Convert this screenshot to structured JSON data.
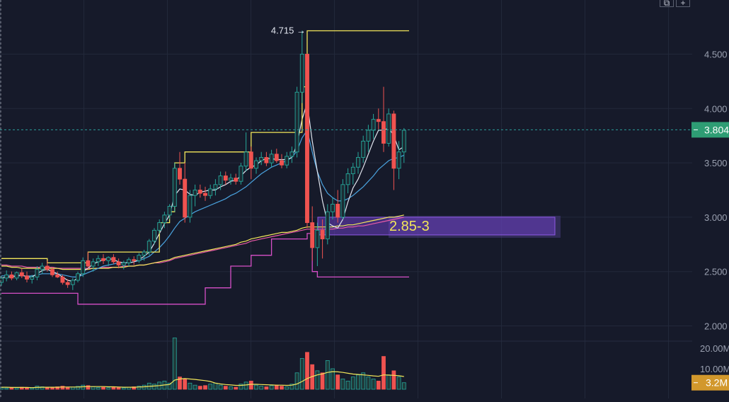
{
  "chart_data": {
    "type": "candlestick",
    "price_axis": {
      "ticks": [
        "4.500",
        "4.000",
        "3.500",
        "3.000",
        "2.500",
        "2.000"
      ],
      "tick_values": [
        4.5,
        4.0,
        3.5,
        3.0,
        2.5,
        2.0
      ],
      "range": [
        1.7,
        4.95
      ]
    },
    "volume_axis": {
      "ticks": [
        "20.00M",
        "10.00M"
      ],
      "tick_values": [
        20,
        10
      ],
      "unit": "M"
    },
    "current_price": {
      "value": 3.804,
      "label": "3.804",
      "color": "#2e9d74"
    },
    "current_volume": {
      "value": 3.2,
      "label": "3.2M",
      "color": "#d2982c"
    },
    "annotations": {
      "high_marker": {
        "label": "4.715 →",
        "value": 4.715
      },
      "zone": {
        "label": "2.85-3",
        "low": 2.85,
        "high": 3.0,
        "color": "#7a45c8"
      }
    },
    "colors": {
      "up": "#26a69a",
      "down": "#ef5350",
      "donchian_upper": "#f2e65a",
      "donchian_lower": "#d64fc7",
      "ma_fast": "#e0e4ee",
      "ma_mid": "#4aa3df",
      "ma_long": "#f2e65a",
      "ma_long2": "#e85aa8",
      "volume_ma": "#f2e65a"
    },
    "candles": [
      [
        2.4,
        2.46,
        2.37,
        2.44
      ],
      [
        2.44,
        2.51,
        2.41,
        2.47
      ],
      [
        2.47,
        2.5,
        2.42,
        2.44
      ],
      [
        2.44,
        2.5,
        2.42,
        2.49
      ],
      [
        2.49,
        2.53,
        2.44,
        2.46
      ],
      [
        2.46,
        2.5,
        2.4,
        2.43
      ],
      [
        2.43,
        2.47,
        2.39,
        2.45
      ],
      [
        2.45,
        2.55,
        2.42,
        2.52
      ],
      [
        2.52,
        2.58,
        2.48,
        2.55
      ],
      [
        2.55,
        2.6,
        2.5,
        2.52
      ],
      [
        2.52,
        2.54,
        2.45,
        2.47
      ],
      [
        2.47,
        2.5,
        2.44,
        2.45
      ],
      [
        2.45,
        2.47,
        2.38,
        2.4
      ],
      [
        2.4,
        2.43,
        2.35,
        2.38
      ],
      [
        2.38,
        2.44,
        2.33,
        2.42
      ],
      [
        2.42,
        2.5,
        2.4,
        2.48
      ],
      [
        2.48,
        2.63,
        2.45,
        2.6
      ],
      [
        2.6,
        2.68,
        2.52,
        2.55
      ],
      [
        2.55,
        2.62,
        2.5,
        2.59
      ],
      [
        2.59,
        2.65,
        2.55,
        2.62
      ],
      [
        2.62,
        2.66,
        2.57,
        2.6
      ],
      [
        2.6,
        2.64,
        2.55,
        2.63
      ],
      [
        2.63,
        2.66,
        2.57,
        2.59
      ],
      [
        2.59,
        2.62,
        2.53,
        2.56
      ],
      [
        2.56,
        2.6,
        2.52,
        2.58
      ],
      [
        2.58,
        2.63,
        2.55,
        2.61
      ],
      [
        2.61,
        2.64,
        2.56,
        2.6
      ],
      [
        2.6,
        2.67,
        2.58,
        2.65
      ],
      [
        2.65,
        2.7,
        2.6,
        2.68
      ],
      [
        2.68,
        2.8,
        2.65,
        2.78
      ],
      [
        2.78,
        2.9,
        2.75,
        2.88
      ],
      [
        2.88,
        2.98,
        2.85,
        2.95
      ],
      [
        2.95,
        3.05,
        2.9,
        3.02
      ],
      [
        3.02,
        3.12,
        2.98,
        3.1
      ],
      [
        3.1,
        3.5,
        3.05,
        3.45
      ],
      [
        3.45,
        3.6,
        3.3,
        3.35
      ],
      [
        3.35,
        3.5,
        2.95,
        3.0
      ],
      [
        3.0,
        3.25,
        2.95,
        3.2
      ],
      [
        3.2,
        3.3,
        3.1,
        3.25
      ],
      [
        3.25,
        3.3,
        3.18,
        3.22
      ],
      [
        3.22,
        3.28,
        3.15,
        3.2
      ],
      [
        3.2,
        3.3,
        3.17,
        3.26
      ],
      [
        3.26,
        3.35,
        3.2,
        3.3
      ],
      [
        3.3,
        3.42,
        3.25,
        3.38
      ],
      [
        3.38,
        3.42,
        3.3,
        3.34
      ],
      [
        3.34,
        3.4,
        3.3,
        3.36
      ],
      [
        3.36,
        3.4,
        3.3,
        3.33
      ],
      [
        3.33,
        3.5,
        3.3,
        3.47
      ],
      [
        3.47,
        3.78,
        3.42,
        3.6
      ],
      [
        3.6,
        3.65,
        3.35,
        3.45
      ],
      [
        3.45,
        3.55,
        3.4,
        3.52
      ],
      [
        3.52,
        3.6,
        3.48,
        3.55
      ],
      [
        3.55,
        3.6,
        3.47,
        3.5
      ],
      [
        3.5,
        3.62,
        3.46,
        3.58
      ],
      [
        3.58,
        3.63,
        3.5,
        3.52
      ],
      [
        3.52,
        3.58,
        3.45,
        3.48
      ],
      [
        3.48,
        3.6,
        3.45,
        3.56
      ],
      [
        3.56,
        3.65,
        3.5,
        3.6
      ],
      [
        3.6,
        4.2,
        3.55,
        4.15
      ],
      [
        4.15,
        4.715,
        4.05,
        4.5
      ],
      [
        4.5,
        4.5,
        2.9,
        2.95
      ],
      [
        2.95,
        3.1,
        2.6,
        2.72
      ],
      [
        2.72,
        2.95,
        2.55,
        2.88
      ],
      [
        2.88,
        2.98,
        2.62,
        2.8
      ],
      [
        2.8,
        3.12,
        2.75,
        3.05
      ],
      [
        3.05,
        3.18,
        2.98,
        3.12
      ],
      [
        3.12,
        3.25,
        2.95,
        3.0
      ],
      [
        3.0,
        3.35,
        2.98,
        3.3
      ],
      [
        3.3,
        3.45,
        3.22,
        3.4
      ],
      [
        3.4,
        3.5,
        3.3,
        3.46
      ],
      [
        3.46,
        3.6,
        3.4,
        3.55
      ],
      [
        3.55,
        3.75,
        3.5,
        3.7
      ],
      [
        3.7,
        3.85,
        3.6,
        3.8
      ],
      [
        3.8,
        3.95,
        3.72,
        3.9
      ],
      [
        3.9,
        4.0,
        3.8,
        3.88
      ],
      [
        3.88,
        4.2,
        3.6,
        3.68
      ],
      [
        3.68,
        4.0,
        3.65,
        3.95
      ],
      [
        3.95,
        3.98,
        3.25,
        3.45
      ],
      [
        3.45,
        3.7,
        3.35,
        3.6
      ],
      [
        3.6,
        3.82,
        3.5,
        3.8
      ]
    ],
    "volume": [
      0.8,
      0.6,
      0.9,
      0.7,
      1.0,
      0.8,
      0.6,
      1.5,
      1.2,
      1.0,
      0.8,
      1.2,
      1.5,
      0.9,
      1.0,
      1.4,
      2.0,
      1.8,
      1.2,
      0.9,
      1.0,
      0.8,
      1.1,
      0.9,
      0.7,
      1.0,
      1.2,
      1.5,
      2.0,
      3.0,
      2.5,
      3.5,
      4.0,
      3.0,
      25.0,
      6.0,
      5.0,
      3.0,
      2.0,
      1.5,
      1.8,
      2.5,
      3.0,
      2.0,
      1.5,
      1.2,
      1.0,
      2.5,
      3.5,
      4.0,
      2.0,
      1.5,
      1.2,
      1.8,
      2.0,
      1.5,
      1.2,
      2.5,
      8.0,
      15.0,
      18.0,
      12.0,
      9.0,
      8.0,
      14.0,
      10.0,
      7.0,
      5.0,
      4.0,
      6.0,
      7.0,
      8.0,
      6.0,
      5.0,
      4.0,
      16.0,
      7.0,
      9.0,
      6.0,
      3.2
    ],
    "donchian_upper": [
      [
        0,
        2.62
      ],
      [
        8,
        2.62
      ],
      [
        9,
        2.58
      ],
      [
        16,
        2.58
      ],
      [
        17,
        2.68
      ],
      [
        30,
        2.68
      ],
      [
        31,
        2.95
      ],
      [
        33,
        3.05
      ],
      [
        34,
        3.5
      ],
      [
        36,
        3.6
      ],
      [
        48,
        3.6
      ],
      [
        49,
        3.78
      ],
      [
        58,
        3.78
      ],
      [
        59,
        4.2
      ],
      [
        60,
        4.715
      ],
      [
        80,
        4.715
      ]
    ],
    "donchian_lower": [
      [
        0,
        2.3
      ],
      [
        14,
        2.3
      ],
      [
        15,
        2.2
      ],
      [
        39,
        2.2
      ],
      [
        40,
        2.35
      ],
      [
        45,
        2.55
      ],
      [
        49,
        2.65
      ],
      [
        53,
        2.8
      ],
      [
        60,
        2.85
      ],
      [
        61,
        2.5
      ],
      [
        62,
        2.45
      ],
      [
        80,
        2.45
      ]
    ],
    "ma_fast": [
      2.44,
      2.45,
      2.45,
      2.46,
      2.47,
      2.45,
      2.45,
      2.48,
      2.51,
      2.52,
      2.5,
      2.48,
      2.45,
      2.42,
      2.41,
      2.44,
      2.5,
      2.53,
      2.57,
      2.59,
      2.61,
      2.62,
      2.61,
      2.59,
      2.58,
      2.58,
      2.59,
      2.61,
      2.64,
      2.68,
      2.76,
      2.85,
      2.94,
      3.02,
      3.2,
      3.26,
      3.25,
      3.21,
      3.2,
      3.23,
      3.24,
      3.25,
      3.25,
      3.28,
      3.3,
      3.33,
      3.34,
      3.38,
      3.43,
      3.46,
      3.48,
      3.52,
      3.54,
      3.54,
      3.53,
      3.53,
      3.53,
      3.55,
      3.67,
      3.9,
      4.05,
      3.7,
      3.42,
      3.15,
      2.95,
      2.92,
      2.9,
      2.98,
      3.14,
      3.27,
      3.35,
      3.46,
      3.58,
      3.7,
      3.8,
      3.8,
      3.82,
      3.75,
      3.62,
      3.65
    ],
    "ma_mid": [
      2.46,
      2.46,
      2.46,
      2.46,
      2.46,
      2.46,
      2.46,
      2.47,
      2.48,
      2.48,
      2.48,
      2.48,
      2.47,
      2.46,
      2.45,
      2.45,
      2.47,
      2.49,
      2.51,
      2.53,
      2.55,
      2.56,
      2.57,
      2.58,
      2.58,
      2.58,
      2.59,
      2.6,
      2.62,
      2.64,
      2.68,
      2.72,
      2.77,
      2.83,
      2.9,
      2.96,
      2.99,
      3.02,
      3.05,
      3.07,
      3.09,
      3.11,
      3.13,
      3.15,
      3.17,
      3.2,
      3.22,
      3.25,
      3.28,
      3.32,
      3.36,
      3.4,
      3.43,
      3.46,
      3.48,
      3.5,
      3.52,
      3.55,
      3.61,
      3.73,
      3.8,
      3.6,
      3.42,
      3.3,
      3.22,
      3.18,
      3.15,
      3.15,
      3.17,
      3.2,
      3.24,
      3.28,
      3.33,
      3.38,
      3.44,
      3.48,
      3.52,
      3.54,
      3.55,
      3.57
    ],
    "ma_long": [
      2.55,
      2.55,
      2.54,
      2.54,
      2.53,
      2.53,
      2.53,
      2.53,
      2.53,
      2.53,
      2.53,
      2.53,
      2.52,
      2.52,
      2.52,
      2.52,
      2.52,
      2.52,
      2.53,
      2.53,
      2.53,
      2.53,
      2.54,
      2.54,
      2.54,
      2.55,
      2.55,
      2.56,
      2.56,
      2.57,
      2.58,
      2.59,
      2.6,
      2.61,
      2.63,
      2.64,
      2.65,
      2.66,
      2.67,
      2.68,
      2.69,
      2.7,
      2.71,
      2.72,
      2.73,
      2.74,
      2.75,
      2.77,
      2.78,
      2.8,
      2.81,
      2.82,
      2.83,
      2.84,
      2.85,
      2.86,
      2.86,
      2.87,
      2.88,
      2.9,
      2.91,
      2.91,
      2.91,
      2.91,
      2.91,
      2.91,
      2.92,
      2.92,
      2.93,
      2.93,
      2.94,
      2.95,
      2.96,
      2.97,
      2.98,
      2.99,
      3.0,
      3.0,
      3.01,
      3.02
    ],
    "ma_long2": [
      2.56,
      2.56,
      2.55,
      2.55,
      2.55,
      2.54,
      2.54,
      2.54,
      2.54,
      2.54,
      2.54,
      2.53,
      2.53,
      2.53,
      2.53,
      2.53,
      2.53,
      2.53,
      2.53,
      2.53,
      2.54,
      2.54,
      2.54,
      2.54,
      2.55,
      2.55,
      2.55,
      2.56,
      2.56,
      2.57,
      2.58,
      2.58,
      2.59,
      2.6,
      2.62,
      2.63,
      2.64,
      2.65,
      2.66,
      2.67,
      2.68,
      2.69,
      2.7,
      2.71,
      2.72,
      2.73,
      2.74,
      2.75,
      2.76,
      2.78,
      2.79,
      2.8,
      2.81,
      2.82,
      2.83,
      2.84,
      2.85,
      2.86,
      2.87,
      2.88,
      2.89,
      2.89,
      2.89,
      2.89,
      2.89,
      2.89,
      2.9,
      2.9,
      2.91,
      2.91,
      2.92,
      2.92,
      2.93,
      2.94,
      2.95,
      2.96,
      2.97,
      2.98,
      2.99,
      3.0
    ],
    "volume_ma": [
      1.0,
      1.0,
      0.9,
      0.9,
      0.9,
      0.9,
      0.8,
      0.9,
      1.0,
      1.0,
      1.0,
      1.0,
      1.1,
      1.1,
      1.1,
      1.1,
      1.2,
      1.3,
      1.3,
      1.3,
      1.3,
      1.2,
      1.2,
      1.1,
      1.0,
      1.0,
      1.0,
      1.1,
      1.2,
      1.4,
      1.6,
      1.8,
      2.1,
      2.3,
      4.5,
      5.0,
      5.2,
      5.0,
      4.8,
      4.5,
      4.2,
      3.8,
      3.0,
      2.6,
      2.3,
      2.1,
      1.9,
      1.9,
      2.1,
      2.4,
      2.4,
      2.3,
      2.2,
      2.1,
      2.0,
      2.0,
      1.9,
      2.0,
      2.6,
      3.8,
      5.2,
      6.2,
      7.0,
      7.5,
      8.2,
      8.6,
      8.5,
      8.2,
      7.8,
      7.4,
      7.2,
      7.0,
      6.8,
      6.5,
      6.3,
      7.0,
      6.9,
      6.8,
      6.6,
      6.2
    ]
  },
  "corner_controls": {
    "left_glyph": "⧉",
    "right_glyph": "+"
  }
}
